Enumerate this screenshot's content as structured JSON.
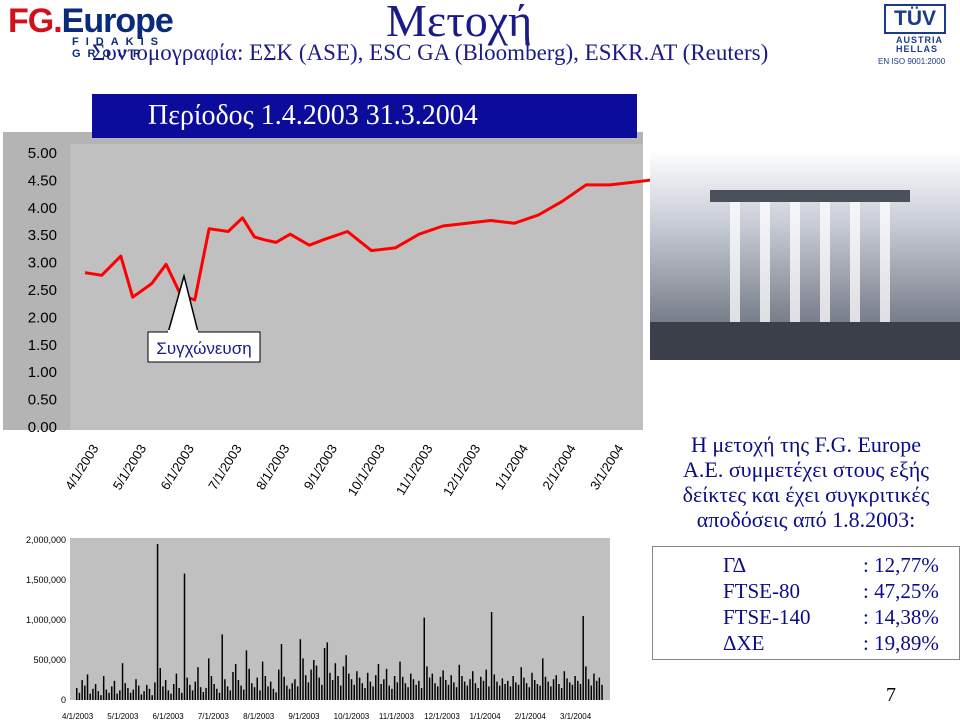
{
  "header": {
    "title": "Μετοχή",
    "subtitle": "Συντομογραφία: ΕΣΚ (ASE), ESC GA (Bloomberg), ESKR.AT (Reuters)"
  },
  "logo": {
    "main_red": "FG.",
    "main_blue": "Europe",
    "sub": "FIDAKIS GROUP"
  },
  "certification": {
    "mark": "TÜV",
    "line1": "AUSTRIA",
    "line2": "HELLAS",
    "iso": "EN ISO 9001:2000"
  },
  "period_label": "Περίοδος 1.4.2003  31.3.2004",
  "annotation": "Συγχώνευση",
  "info": {
    "lines": [
      "Η μετοχή της F.G. Europe",
      "Α.Ε. συμμετέχει στους εξής",
      "δείκτες και έχει συγκριτικές",
      "αποδόσεις από 1.8.2003:"
    ]
  },
  "indices": [
    {
      "name": "ΓΔ",
      "value": ": 12,77%"
    },
    {
      "name": "FTSE-80",
      "value": ": 47,25%"
    },
    {
      "name": "FTSE-140",
      "value": ": 14,38%"
    },
    {
      "name": "ΔΧΕ",
      "value": ": 19,89%"
    }
  ],
  "page_number": "7",
  "colors": {
    "price_line": "#ff0000",
    "volume_bar": "#000000",
    "period_box": "#0c0c9c",
    "text_blue": "#1a1a8a"
  },
  "chart_data": [
    {
      "type": "line",
      "series": [
        {
          "name": "",
          "color": "#ff0000"
        }
      ],
      "x_tick_labels": [
        "4/1/2003",
        "5/1/2003",
        "6/1/2003",
        "7/1/2003",
        "8/1/2003",
        "9/1/2003",
        "10/1/2003",
        "11/1/2003",
        "12/1/2003",
        "1/1/2004",
        "2/1/2004",
        "3/1/2004"
      ],
      "y_tick_labels": [
        "5.00",
        "4.50",
        "4.00",
        "3.50",
        "3.00",
        "2.50",
        "2.00",
        "1.50",
        "1.00",
        "0.50",
        "0.00"
      ],
      "ylim": [
        0,
        5
      ],
      "months": [
        0,
        0.35,
        0.75,
        1.0,
        1.4,
        1.7,
        2.0,
        2.3,
        2.6,
        3.0,
        3.3,
        3.55,
        3.75,
        4.0,
        4.3,
        4.7,
        5.0,
        5.5,
        6.0,
        6.5,
        7.0,
        7.5,
        8.0,
        8.5,
        9.0,
        9.5,
        10.0,
        10.5,
        11.0,
        11.5,
        11.97
      ],
      "values": [
        2.8,
        2.75,
        3.1,
        2.35,
        2.6,
        2.95,
        2.4,
        2.3,
        3.6,
        3.55,
        3.8,
        3.45,
        3.4,
        3.35,
        3.5,
        3.3,
        3.4,
        3.55,
        3.2,
        3.25,
        3.5,
        3.65,
        3.7,
        3.75,
        3.7,
        3.85,
        4.1,
        4.4,
        4.4,
        4.45,
        4.5
      ]
    },
    {
      "type": "bar",
      "x_tick_labels": [
        "4/1/2003",
        "5/1/2003",
        "6/1/2003",
        "7/1/2003",
        "8/1/2003",
        "9/1/2003",
        "10/1/2003",
        "11/1/2003",
        "12/1/2003",
        "1/1/2004",
        "2/1/2004",
        "3/1/2004"
      ],
      "y_tick_labels": [
        "2,000,000",
        "1,500,000",
        "1,000,000",
        "500,000",
        "0"
      ],
      "ylim": [
        0,
        2000000
      ],
      "values": [
        150000,
        90000,
        250000,
        180000,
        320000,
        80000,
        140000,
        200000,
        110000,
        60000,
        300000,
        130000,
        90000,
        170000,
        240000,
        80000,
        120000,
        460000,
        210000,
        150000,
        90000,
        130000,
        260000,
        180000,
        70000,
        110000,
        190000,
        140000,
        60000,
        220000,
        1950000,
        400000,
        170000,
        250000,
        120000,
        80000,
        200000,
        330000,
        150000,
        90000,
        1580000,
        280000,
        190000,
        120000,
        230000,
        410000,
        160000,
        100000,
        150000,
        520000,
        300000,
        200000,
        140000,
        90000,
        820000,
        260000,
        170000,
        120000,
        350000,
        450000,
        250000,
        180000,
        130000,
        620000,
        390000,
        210000,
        160000,
        280000,
        120000,
        480000,
        300000,
        170000,
        230000,
        140000,
        95000,
        380000,
        700000,
        290000,
        180000,
        140000,
        210000,
        260000,
        170000,
        760000,
        520000,
        310000,
        220000,
        380000,
        500000,
        430000,
        280000,
        190000,
        650000,
        720000,
        340000,
        250000,
        460000,
        300000,
        180000,
        420000,
        560000,
        330000,
        260000,
        190000,
        360000,
        280000,
        210000,
        150000,
        340000,
        230000,
        170000,
        310000,
        450000,
        200000,
        260000,
        390000,
        180000,
        140000,
        300000,
        220000,
        480000,
        290000,
        210000,
        160000,
        330000,
        260000,
        190000,
        240000,
        150000,
        1030000,
        420000,
        280000,
        330000,
        210000,
        170000,
        290000,
        370000,
        250000,
        190000,
        310000,
        220000,
        160000,
        440000,
        300000,
        230000,
        180000,
        260000,
        360000,
        210000,
        150000,
        290000,
        240000,
        380000,
        170000,
        1100000,
        320000,
        230000,
        180000,
        270000,
        200000,
        240000,
        170000,
        300000,
        220000,
        190000,
        410000,
        280000,
        210000,
        160000,
        340000,
        250000,
        200000,
        180000,
        520000,
        290000,
        230000,
        170000,
        260000,
        310000,
        200000,
        150000,
        360000,
        270000,
        220000,
        190000,
        300000,
        240000,
        200000,
        1050000,
        420000,
        260000,
        180000,
        330000,
        240000,
        280000,
        190000
      ]
    }
  ]
}
